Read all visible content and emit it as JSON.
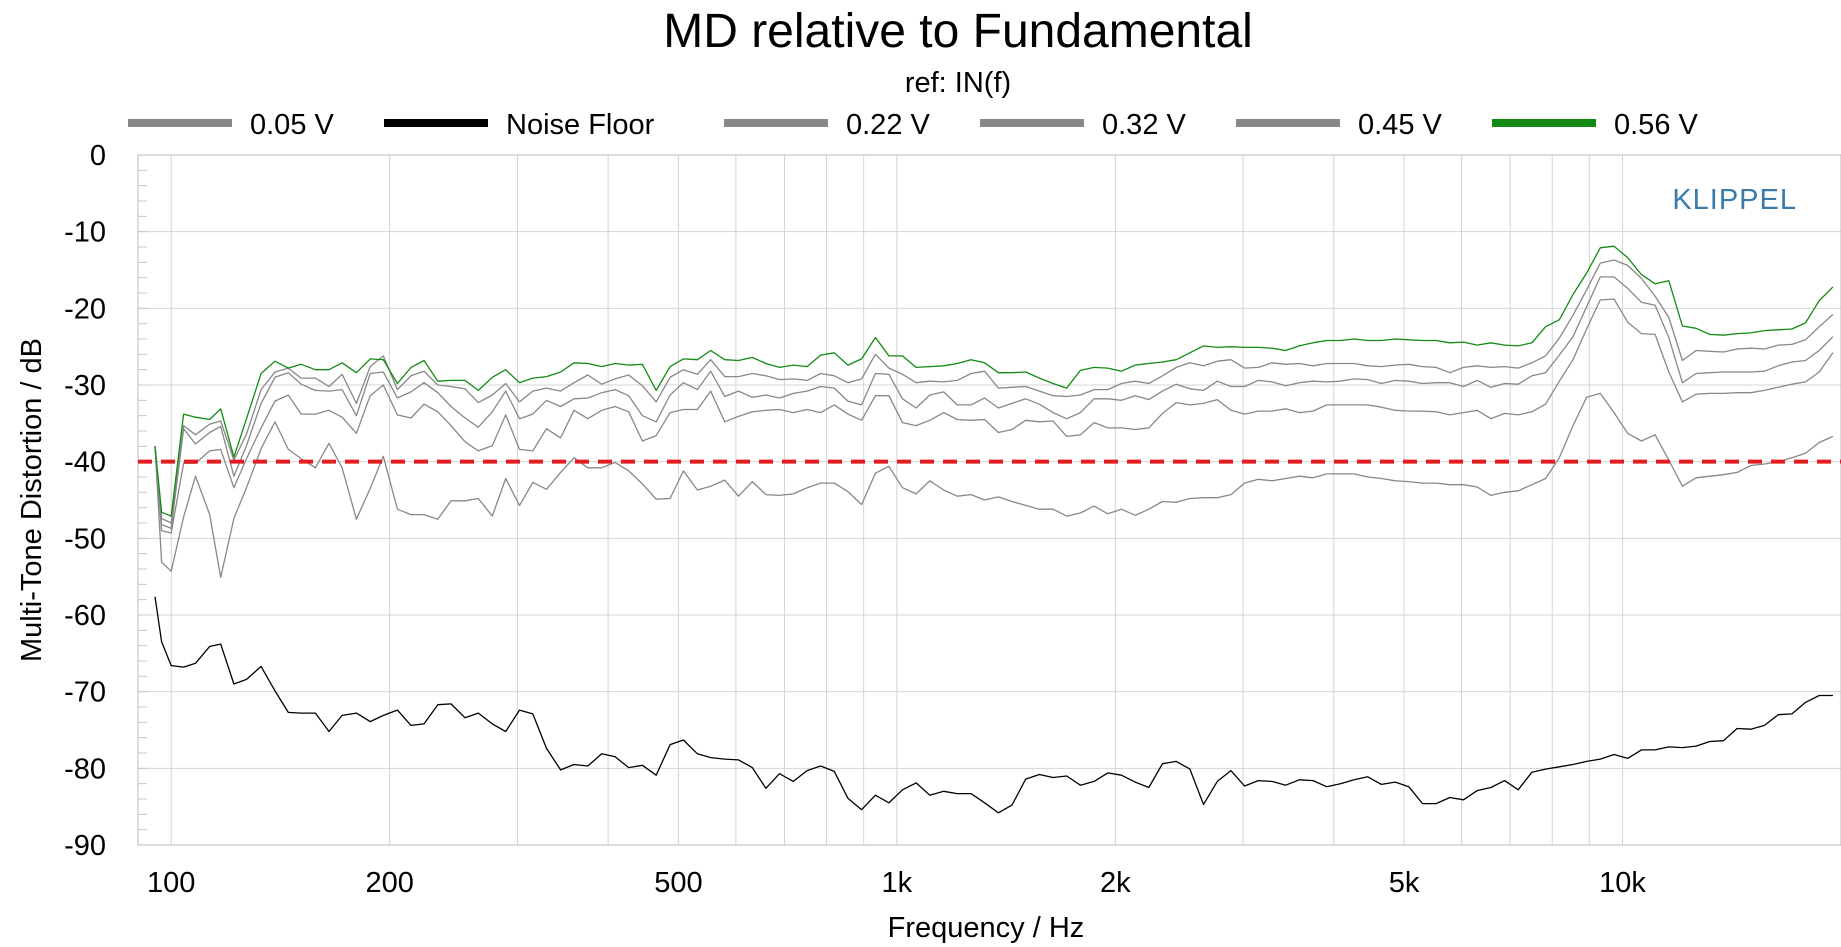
{
  "chart_data": {
    "type": "line",
    "title": "MD relative to Fundamental",
    "subtitle": "ref: IN(f)",
    "xlabel": "Frequency / Hz",
    "ylabel": "Multi-Tone Distortion / dB",
    "brand": "KLIPPEL",
    "x_scale": "log",
    "xlim": [
      90,
      20000
    ],
    "ylim": [
      -90,
      0
    ],
    "x_ticks": [
      {
        "value": 100,
        "label": "100"
      },
      {
        "value": 200,
        "label": "200"
      },
      {
        "value": 500,
        "label": "500"
      },
      {
        "value": 1000,
        "label": "1k"
      },
      {
        "value": 2000,
        "label": "2k"
      },
      {
        "value": 5000,
        "label": "5k"
      },
      {
        "value": 10000,
        "label": "10k"
      }
    ],
    "y_ticks": [
      {
        "value": 0,
        "label": "0"
      },
      {
        "value": -10,
        "label": "-10"
      },
      {
        "value": -20,
        "label": "-20"
      },
      {
        "value": -30,
        "label": "-30"
      },
      {
        "value": -40,
        "label": "-40"
      },
      {
        "value": -50,
        "label": "-50"
      },
      {
        "value": -60,
        "label": "-60"
      },
      {
        "value": -70,
        "label": "-70"
      },
      {
        "value": -80,
        "label": "-80"
      },
      {
        "value": -90,
        "label": "-90"
      }
    ],
    "grid": true,
    "legend_position": "top",
    "reference_line": {
      "y": -40,
      "color": "#e31b23",
      "style": "dashed"
    },
    "x": [
      95,
      97,
      100,
      104,
      108,
      113,
      117,
      122,
      127,
      133,
      139,
      145,
      151,
      158,
      165,
      172,
      180,
      188,
      196,
      205,
      214,
      223,
      233,
      243,
      254,
      265,
      277,
      289,
      302,
      315,
      329,
      344,
      359,
      375,
      392,
      409,
      427,
      446,
      466,
      487,
      508,
      531,
      554,
      579,
      605,
      632,
      660,
      689,
      720,
      752,
      785,
      820,
      856,
      894,
      934,
      975,
      1018,
      1063,
      1110,
      1160,
      1211,
      1265,
      1321,
      1380,
      1441,
      1505,
      1572,
      1641,
      1714,
      1790,
      1870,
      1953,
      2039,
      2130,
      2224,
      2323,
      2426,
      2534,
      2646,
      2764,
      2886,
      3014,
      3148,
      3288,
      3434,
      3586,
      3745,
      3911,
      4085,
      4266,
      4455,
      4653,
      4859,
      5075,
      5300,
      5535,
      5781,
      6037,
      6305,
      6585,
      6877,
      7182,
      7501,
      7834,
      8181,
      8544,
      8923,
      9319,
      9733,
      10165,
      10616,
      11087,
      11579,
      12092,
      12629,
      13189,
      13774,
      14385,
      15023,
      15690,
      16386,
      17113,
      17872,
      18664,
      19492
    ],
    "series": [
      {
        "name": "0.05 V",
        "color": "#888888",
        "values": [
          -38,
          -53.1,
          -54.3,
          -47.2,
          -41.9,
          -46.9,
          -55.1,
          -47.4,
          -43.4,
          -38.3,
          -34.8,
          -38.4,
          -39.6,
          -40.8,
          -37.6,
          -40.8,
          -47.5,
          -43.5,
          -39.3,
          -46.2,
          -46.9,
          -46.9,
          -47.5,
          -45.1,
          -45.1,
          -44.8,
          -47.1,
          -42.2,
          -45.7,
          -42.7,
          -43.6,
          -41.4,
          -39.5,
          -40.8,
          -40.8,
          -40.1,
          -41.2,
          -42.9,
          -44.9,
          -44.8,
          -41.2,
          -43.7,
          -43.2,
          -42.4,
          -44.5,
          -42.6,
          -44.3,
          -44.4,
          -44.2,
          -43.4,
          -42.8,
          -42.8,
          -43.9,
          -45.6,
          -41.5,
          -40.6,
          -43.4,
          -44.2,
          -42.5,
          -43.7,
          -44.5,
          -44.3,
          -45,
          -44.6,
          -45.2,
          -45.7,
          -46.2,
          -46.2,
          -47.1,
          -46.7,
          -45.8,
          -46.8,
          -46.2,
          -47,
          -46.2,
          -45.2,
          -45.3,
          -44.8,
          -44.7,
          -44.7,
          -44.3,
          -42.8,
          -42.3,
          -42.5,
          -42.2,
          -41.9,
          -42.1,
          -41.6,
          -41.6,
          -41.6,
          -42,
          -42.2,
          -42.5,
          -42.6,
          -42.8,
          -42.8,
          -43,
          -43,
          -43.3,
          -44.4,
          -44,
          -43.8,
          -43,
          -42.2,
          -39.5,
          -35.3,
          -31.6,
          -31.1,
          -33.6,
          -36.3,
          -37.3,
          -36.5,
          -39.8,
          -43.2,
          -42.1,
          -41.9,
          -41.7,
          -41.4,
          -40.5,
          -40.3,
          -40,
          -39.5,
          -38.9,
          -37.5,
          -36.7
        ]
      },
      {
        "name": "Noise Floor",
        "color": "#000000",
        "values": [
          -57.6,
          -63.5,
          -66.6,
          -66.8,
          -66.3,
          -64.1,
          -63.8,
          -69,
          -68.4,
          -66.7,
          -69.9,
          -72.7,
          -72.8,
          -72.8,
          -75.2,
          -73.1,
          -72.8,
          -73.9,
          -73.1,
          -72.4,
          -74.4,
          -74.2,
          -71.7,
          -71.6,
          -73.4,
          -72.8,
          -74.2,
          -75.2,
          -72.4,
          -72.9,
          -77.4,
          -80.2,
          -79.5,
          -79.7,
          -78.1,
          -78.5,
          -79.9,
          -79.6,
          -80.9,
          -76.9,
          -76.3,
          -78.1,
          -78.6,
          -78.8,
          -78.9,
          -79.9,
          -82.6,
          -80.7,
          -81.7,
          -80.3,
          -79.7,
          -80.4,
          -83.9,
          -85.4,
          -83.5,
          -84.5,
          -82.8,
          -81.9,
          -83.5,
          -83,
          -83.3,
          -83.3,
          -84.5,
          -85.8,
          -84.8,
          -81.4,
          -80.8,
          -81.2,
          -81,
          -82.2,
          -81.7,
          -80.6,
          -80.9,
          -81.8,
          -82.5,
          -79.4,
          -79.1,
          -80.1,
          -84.7,
          -81.7,
          -80.3,
          -82.3,
          -81.6,
          -81.7,
          -82.2,
          -81.5,
          -81.6,
          -82.4,
          -82,
          -81.5,
          -81.1,
          -82.1,
          -81.8,
          -82.4,
          -84.6,
          -84.6,
          -83.8,
          -84.1,
          -82.9,
          -82.5,
          -81.6,
          -82.8,
          -80.5,
          -80.1,
          -79.8,
          -79.5,
          -79.1,
          -78.8,
          -78.2,
          -78.7,
          -77.6,
          -77.6,
          -77.2,
          -77.3,
          -77.1,
          -76.5,
          -76.4,
          -74.8,
          -74.9,
          -74.4,
          -73,
          -72.9,
          -71.4,
          -70.5,
          -70.5
        ]
      },
      {
        "name": "0.22 V",
        "color": "#888888",
        "values": [
          -38,
          -49,
          -49.3,
          -40.2,
          -40.2,
          -38.6,
          -38.4,
          -43.4,
          -39.6,
          -35.6,
          -32.1,
          -31.3,
          -33.8,
          -33.8,
          -33.3,
          -34.2,
          -36.3,
          -31.4,
          -30,
          -33.9,
          -34.3,
          -32.5,
          -33.5,
          -35.3,
          -37.4,
          -38.6,
          -37.9,
          -33.9,
          -38.4,
          -38.6,
          -35.7,
          -36.9,
          -33.3,
          -34.4,
          -33.3,
          -32.8,
          -33.5,
          -37.3,
          -36.6,
          -33.6,
          -33.2,
          -33.2,
          -30.8,
          -34.8,
          -34.1,
          -33.5,
          -33.3,
          -33.2,
          -33.6,
          -33.2,
          -33.6,
          -32.6,
          -33.8,
          -34.6,
          -31.4,
          -31.4,
          -34.9,
          -35.3,
          -34.6,
          -33.6,
          -34.5,
          -34.6,
          -34.5,
          -36.2,
          -35.8,
          -34.6,
          -34.8,
          -34.7,
          -36.7,
          -36.5,
          -34.9,
          -35.6,
          -35.6,
          -35.8,
          -35.6,
          -33.7,
          -32.3,
          -32.6,
          -32.4,
          -31.9,
          -33.3,
          -33.8,
          -33.4,
          -33.4,
          -33.1,
          -33.6,
          -33.4,
          -32.6,
          -32.6,
          -32.6,
          -32.6,
          -32.9,
          -33.3,
          -33.4,
          -33.4,
          -33.5,
          -33.9,
          -33.6,
          -33.3,
          -34.4,
          -33.7,
          -33.9,
          -33.5,
          -32.5,
          -29.5,
          -26.7,
          -22.7,
          -18.9,
          -18.8,
          -21.8,
          -23.3,
          -23.4,
          -28.3,
          -32.2,
          -31.2,
          -31.1,
          -31.1,
          -31,
          -31,
          -30.7,
          -30.3,
          -29.9,
          -29.6,
          -28.3,
          -25.8
        ]
      },
      {
        "name": "0.32 V",
        "color": "#888888",
        "values": [
          -38,
          -48.2,
          -48.7,
          -35.7,
          -37.7,
          -36.2,
          -35.4,
          -41.9,
          -37.9,
          -32.4,
          -29,
          -28.4,
          -29.9,
          -30.7,
          -30.8,
          -30.6,
          -34,
          -28.5,
          -28.3,
          -31.7,
          -30.9,
          -29.7,
          -31,
          -32.8,
          -34.3,
          -35.5,
          -33.5,
          -30.8,
          -34.4,
          -33.8,
          -32,
          -32.8,
          -31.8,
          -31.7,
          -31,
          -30.6,
          -31.4,
          -34,
          -34.8,
          -31.3,
          -29.7,
          -30.6,
          -28.2,
          -31.5,
          -30.8,
          -31.6,
          -31.3,
          -31.7,
          -31.1,
          -30.8,
          -30.2,
          -30.4,
          -32.1,
          -32.6,
          -28.5,
          -28.6,
          -31.8,
          -33,
          -31.3,
          -30.9,
          -32.6,
          -32.6,
          -31.7,
          -33,
          -32.4,
          -31.8,
          -32.5,
          -33.6,
          -34.4,
          -33.6,
          -31.8,
          -31.8,
          -32,
          -31.4,
          -31.9,
          -30.8,
          -29.9,
          -30.5,
          -30.7,
          -29.5,
          -30.2,
          -30.2,
          -29.4,
          -29.6,
          -30.1,
          -29.7,
          -29.5,
          -29.6,
          -29.5,
          -29.2,
          -29.3,
          -29.8,
          -29.4,
          -29.5,
          -29.8,
          -29.7,
          -29.7,
          -30.2,
          -29.4,
          -30.3,
          -29.8,
          -29.9,
          -28.8,
          -28.4,
          -26.1,
          -23.7,
          -19.8,
          -15.9,
          -15.9,
          -17.4,
          -19.2,
          -19.6,
          -23.8,
          -29.7,
          -28.5,
          -28.4,
          -28.3,
          -28.3,
          -28.3,
          -28.2,
          -27.5,
          -27,
          -26.8,
          -25.5,
          -23.7
        ]
      },
      {
        "name": "0.45 V",
        "color": "#888888",
        "values": [
          -38,
          -47.4,
          -48,
          -35.3,
          -36.5,
          -35.1,
          -34.7,
          -39.8,
          -36.4,
          -30.6,
          -28.3,
          -27.8,
          -29.1,
          -29.1,
          -30.2,
          -28.6,
          -32.4,
          -27.6,
          -26.2,
          -30.6,
          -28.8,
          -28.2,
          -30,
          -30.2,
          -30.5,
          -32.3,
          -31.3,
          -29.8,
          -32.2,
          -30.8,
          -30.4,
          -30.8,
          -29.7,
          -28.7,
          -29.9,
          -29.2,
          -28.7,
          -30.1,
          -32.2,
          -29,
          -28,
          -28.6,
          -26.7,
          -28.9,
          -28.9,
          -28.5,
          -28.8,
          -29.3,
          -29.2,
          -29.4,
          -28.5,
          -28.8,
          -29.7,
          -29.2,
          -26,
          -27.8,
          -28.6,
          -29.7,
          -29.5,
          -29.6,
          -29.4,
          -28.5,
          -28.2,
          -30.4,
          -30.3,
          -30.2,
          -30.8,
          -31.4,
          -31.5,
          -31.3,
          -30.6,
          -30.6,
          -29.8,
          -29.5,
          -29.8,
          -28.8,
          -27.7,
          -27.1,
          -27.5,
          -26.9,
          -26.7,
          -27.8,
          -27.7,
          -27.1,
          -27.3,
          -27.2,
          -27.5,
          -27.2,
          -27.2,
          -27.2,
          -27.5,
          -27.6,
          -27.4,
          -27.3,
          -27.6,
          -27.7,
          -28.4,
          -27.7,
          -27.5,
          -27.7,
          -27.6,
          -27.8,
          -27.1,
          -26.2,
          -23.9,
          -20.9,
          -17.6,
          -14.1,
          -13.7,
          -14.4,
          -16.1,
          -18.4,
          -21.2,
          -26.8,
          -25.5,
          -25.6,
          -25.7,
          -25.3,
          -25.2,
          -25.3,
          -24.8,
          -24.7,
          -24.1,
          -22.4,
          -20.8
        ]
      },
      {
        "name": "0.56 V",
        "color": "#138a13",
        "values": [
          -38,
          -46.6,
          -47.1,
          -33.8,
          -34.2,
          -34.5,
          -33.1,
          -39.4,
          -34.4,
          -28.5,
          -26.9,
          -27.8,
          -27.3,
          -28,
          -28,
          -27.1,
          -28.4,
          -26.6,
          -26.7,
          -29.8,
          -27.7,
          -26.8,
          -29.5,
          -29.4,
          -29.4,
          -30.7,
          -29,
          -28,
          -29.7,
          -29.1,
          -28.9,
          -28.3,
          -27.1,
          -27.2,
          -27.6,
          -27.2,
          -27.4,
          -27.3,
          -30.7,
          -27.6,
          -26.6,
          -26.7,
          -25.5,
          -26.7,
          -26.8,
          -26.4,
          -27.2,
          -27.7,
          -27.4,
          -27.6,
          -26.1,
          -25.8,
          -27.4,
          -26.6,
          -23.8,
          -26.2,
          -26.2,
          -27.7,
          -27.6,
          -27.5,
          -27.2,
          -26.7,
          -27.1,
          -28.4,
          -28.4,
          -28.3,
          -29.1,
          -29.8,
          -30.4,
          -28.1,
          -27.7,
          -27.8,
          -28.2,
          -27.4,
          -27.2,
          -27,
          -26.7,
          -25.8,
          -24.9,
          -25.1,
          -25,
          -25.1,
          -25.1,
          -25.2,
          -25.5,
          -24.9,
          -24.5,
          -24.2,
          -24.2,
          -24,
          -24.2,
          -24.2,
          -24,
          -24.1,
          -24.2,
          -24.2,
          -24.5,
          -24.4,
          -24.8,
          -24.5,
          -24.8,
          -24.9,
          -24.5,
          -22.4,
          -21.5,
          -18.2,
          -15.4,
          -12.1,
          -11.9,
          -13.4,
          -15.6,
          -16.8,
          -16.4,
          -22.3,
          -22.6,
          -23.4,
          -23.5,
          -23.3,
          -23.2,
          -22.9,
          -22.8,
          -22.7,
          -21.9,
          -19,
          -17.2
        ]
      }
    ]
  }
}
